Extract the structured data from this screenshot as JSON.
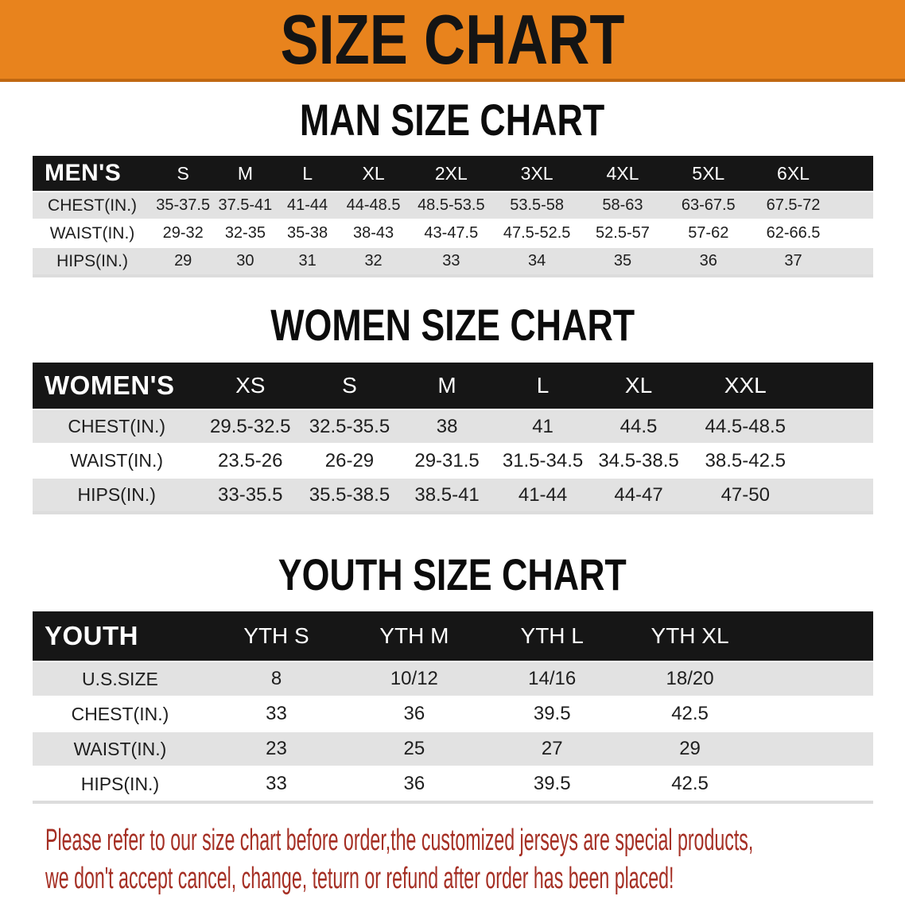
{
  "page": {
    "banner_title": "SIZE CHART"
  },
  "colors": {
    "banner_orange": "#E8831D",
    "banner_edge": "#C06811",
    "header_black": "#161616",
    "row_gray": "#E2E2E2",
    "footer_red": "#A52F24"
  },
  "men": {
    "heading": "MAN SIZE CHART",
    "label": "MEN'S",
    "sizes": [
      "S",
      "M",
      "L",
      "XL",
      "2XL",
      "3XL",
      "4XL",
      "5XL",
      "6XL"
    ],
    "rows": [
      {
        "label": "CHEST(IN.)",
        "cells": [
          "35-37.5",
          "37.5-41",
          "41-44",
          "44-48.5",
          "48.5-53.5",
          "53.5-58",
          "58-63",
          "63-67.5",
          "67.5-72"
        ]
      },
      {
        "label": "WAIST(IN.)",
        "cells": [
          "29-32",
          "32-35",
          "35-38",
          "38-43",
          "43-47.5",
          "47.5-52.5",
          "52.5-57",
          "57-62",
          "62-66.5"
        ]
      },
      {
        "label": "HIPS(IN.)",
        "cells": [
          "29",
          "30",
          "31",
          "32",
          "33",
          "34",
          "35",
          "36",
          "37"
        ]
      }
    ]
  },
  "women": {
    "heading": "WOMEN SIZE CHART",
    "label": "WOMEN'S",
    "sizes": [
      "XS",
      "S",
      "M",
      "L",
      "XL",
      "XXL"
    ],
    "rows": [
      {
        "label": "CHEST(IN.)",
        "cells": [
          "29.5-32.5",
          "32.5-35.5",
          "38",
          "41",
          "44.5",
          "44.5-48.5"
        ]
      },
      {
        "label": "WAIST(IN.)",
        "cells": [
          "23.5-26",
          "26-29",
          "29-31.5",
          "31.5-34.5",
          "34.5-38.5",
          "38.5-42.5"
        ]
      },
      {
        "label": "HIPS(IN.)",
        "cells": [
          "33-35.5",
          "35.5-38.5",
          "38.5-41",
          "41-44",
          "44-47",
          "47-50"
        ]
      }
    ]
  },
  "youth": {
    "heading": "YOUTH SIZE CHART",
    "label": "YOUTH",
    "sizes": [
      "YTH S",
      "YTH M",
      "YTH L",
      "YTH XL"
    ],
    "rows": [
      {
        "label": "U.S.SIZE",
        "cells": [
          "8",
          "10/12",
          "14/16",
          "18/20"
        ]
      },
      {
        "label": "CHEST(IN.)",
        "cells": [
          "33",
          "36",
          "39.5",
          "42.5"
        ]
      },
      {
        "label": "WAIST(IN.)",
        "cells": [
          "23",
          "25",
          "27",
          "29"
        ]
      },
      {
        "label": "HIPS(IN.)",
        "cells": [
          "33",
          "36",
          "39.5",
          "42.5"
        ]
      }
    ]
  },
  "footer": {
    "line1": "Please refer to our size chart before order,the customized jerseys are special products,",
    "line2": "we don't accept cancel, change, teturn or refund after order has been placed!"
  }
}
